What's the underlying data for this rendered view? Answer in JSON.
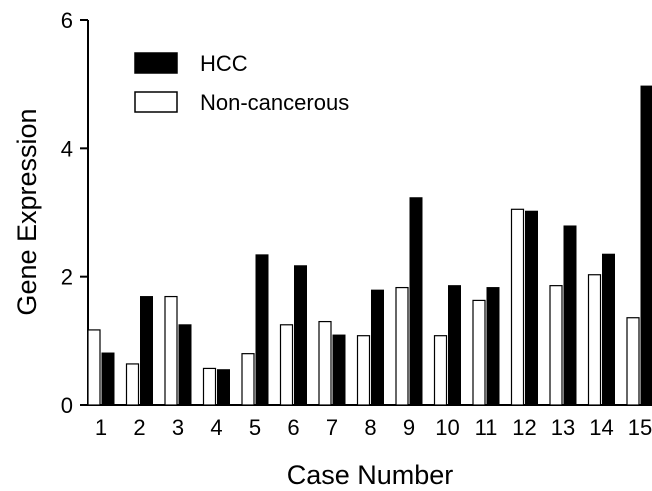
{
  "chart_data": {
    "type": "bar",
    "title": "",
    "xlabel": "Case Number",
    "ylabel": "Gene Expression",
    "ylim": [
      0,
      6
    ],
    "yticks": [
      0,
      2,
      4,
      6
    ],
    "grid": false,
    "legend_position": "top-left",
    "categories": [
      "1",
      "2",
      "3",
      "4",
      "5",
      "6",
      "7",
      "8",
      "9",
      "10",
      "11",
      "12",
      "13",
      "14",
      "15"
    ],
    "series": [
      {
        "name": "HCC",
        "color": "#000000",
        "fill": "solid",
        "values": [
          0.81,
          1.69,
          1.25,
          0.55,
          2.34,
          2.17,
          1.09,
          1.79,
          3.23,
          1.86,
          1.83,
          3.02,
          2.79,
          2.35,
          4.97
        ]
      },
      {
        "name": "Non-cancerous",
        "color": "#ffffff",
        "fill": "hollow",
        "values": [
          1.17,
          0.64,
          1.69,
          0.57,
          0.8,
          1.25,
          1.3,
          1.08,
          1.83,
          1.08,
          1.63,
          3.05,
          1.86,
          2.03,
          1.36
        ]
      }
    ]
  }
}
